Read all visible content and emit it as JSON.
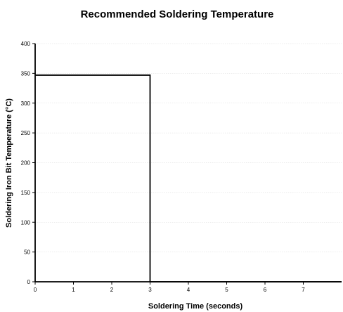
{
  "chart_data": {
    "type": "line",
    "title": "Recommended Soldering Temperature",
    "xlabel": "Soldering Time (seconds)",
    "ylabel": "Soldering Iron Bit Temperature (°C)",
    "xlim": [
      0,
      8
    ],
    "ylim": [
      0,
      400
    ],
    "x_ticks": [
      "0",
      "1",
      "2",
      "3",
      "4",
      "5",
      "6",
      "7"
    ],
    "y_ticks": [
      "0",
      "50",
      "100",
      "150",
      "200",
      "250",
      "300",
      "350",
      "400"
    ],
    "grid": true,
    "series": [
      {
        "x": [
          0,
          3,
          3,
          8
        ],
        "y": [
          347,
          347,
          0,
          0
        ]
      }
    ],
    "colors": {
      "line": "#000000",
      "grid": "#d9d9d9"
    }
  }
}
